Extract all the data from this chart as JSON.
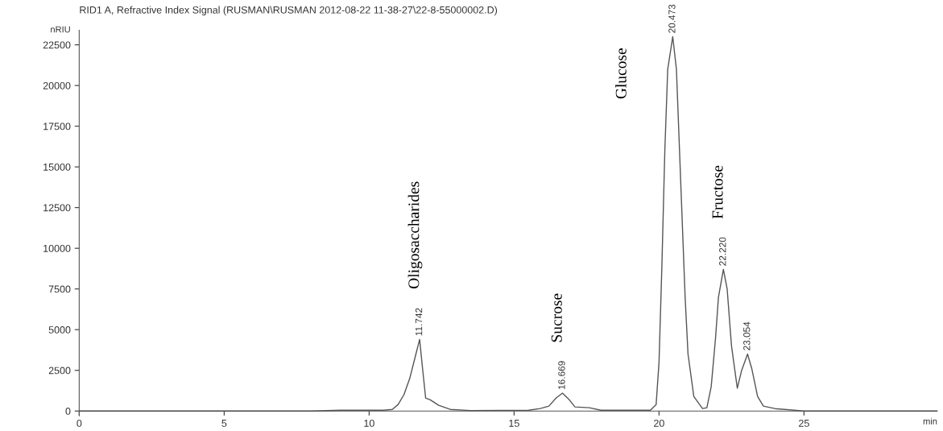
{
  "chart_data": {
    "type": "line",
    "title": "RID1 A, Refractive Index Signal (RUSMAN\\RUSMAN 2012-08-22 11-38-27\\22-8-55000002.D)",
    "ylabel": "nRIU",
    "xlabel": "min",
    "series": [
      {
        "color": "#555555",
        "x": [
          0,
          8,
          9,
          10.5,
          10.8,
          11.0,
          11.2,
          11.4,
          11.6,
          11.742,
          11.85,
          11.95,
          12.1,
          12.4,
          12.8,
          13.5,
          15.5,
          15.9,
          16.2,
          16.45,
          16.669,
          16.9,
          17.1,
          17.6,
          18,
          19.7,
          19.9,
          20.0,
          20.1,
          20.2,
          20.3,
          20.473,
          20.6,
          20.75,
          20.9,
          21.0,
          21.2,
          21.5,
          21.65,
          21.8,
          21.95,
          22.05,
          22.22,
          22.35,
          22.5,
          22.7,
          22.85,
          23.054,
          23.2,
          23.4,
          23.6,
          24,
          25,
          29.6
        ],
        "values": [
          0,
          0,
          50,
          50,
          100,
          400,
          1000,
          2000,
          3400,
          4400,
          2500,
          800,
          700,
          350,
          100,
          30,
          50,
          150,
          300,
          800,
          1100,
          700,
          250,
          200,
          50,
          50,
          400,
          3000,
          9000,
          16000,
          21000,
          23000,
          21000,
          14000,
          7000,
          3500,
          900,
          150,
          200,
          1500,
          4500,
          7000,
          8700,
          7500,
          4000,
          1400,
          2500,
          3500,
          2600,
          900,
          300,
          150,
          0,
          0
        ]
      }
    ],
    "xlim": [
      0,
      29.6
    ],
    "ylim": [
      -300,
      23400
    ],
    "xticks": [
      0,
      5,
      10,
      15,
      20,
      25
    ],
    "yticks": [
      0,
      2500,
      5000,
      7500,
      10000,
      12500,
      15000,
      17500,
      20000,
      22500
    ],
    "grid": false,
    "line_style": "solid",
    "marker": "none",
    "annotations": [
      {
        "text": "11.742",
        "x": 11.742,
        "y": 4400
      },
      {
        "text": "16.669",
        "x": 16.669,
        "y": 1100
      },
      {
        "text": "20.473",
        "x": 20.473,
        "y": 23000
      },
      {
        "text": "22.220",
        "x": 22.22,
        "y": 8700
      },
      {
        "text": "23.054",
        "x": 23.054,
        "y": 3500
      },
      "Oligosaccharides",
      "Sucrose",
      "Glucose",
      "Fructose"
    ]
  }
}
